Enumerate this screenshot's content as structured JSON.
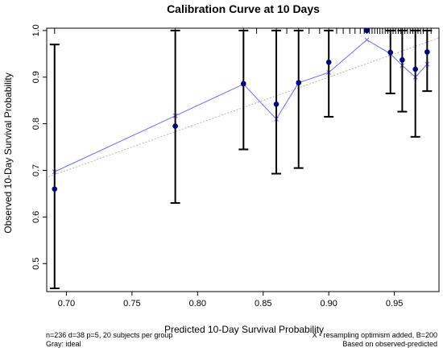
{
  "chart_data": {
    "type": "scatter",
    "title": "Calibration Curve at 10 Days",
    "xlabel": "Predicted 10-Day Survival Probability",
    "ylabel": "Observed 10-Day Survival Probability",
    "xlim": [
      0.685,
      0.984
    ],
    "ylim": [
      0.44,
      1.005
    ],
    "x_ticks": [
      0.7,
      0.75,
      0.8,
      0.85,
      0.9,
      0.95
    ],
    "x_tick_labels": [
      "0.70",
      "0.75",
      "0.80",
      "0.85",
      "0.90",
      "0.95"
    ],
    "y_ticks": [
      0.5,
      0.6,
      0.7,
      0.8,
      0.9,
      1.0
    ],
    "y_tick_labels": [
      "0.5",
      "0.6",
      "0.7",
      "0.8",
      "0.9",
      "1.0"
    ],
    "grid": false,
    "ideal_line": {
      "x": [
        0.67,
        0.984
      ],
      "y": [
        0.67,
        0.984
      ]
    },
    "series": [
      {
        "type": "line",
        "x": [
          0.691,
          0.783,
          0.835,
          0.86,
          0.877,
          0.9,
          0.929,
          0.947,
          0.956,
          0.966,
          0.975
        ],
        "y": [
          0.697,
          0.817,
          0.885,
          0.81,
          0.888,
          0.91,
          0.98,
          0.95,
          0.925,
          0.9,
          0.928
        ]
      },
      {
        "type": "scatter",
        "x": [
          0.691,
          0.783,
          0.835,
          0.86,
          0.877,
          0.9,
          0.929,
          0.947,
          0.956,
          0.966,
          0.975
        ],
        "y": [
          0.66,
          0.795,
          0.886,
          0.842,
          0.888,
          0.932,
          1.0,
          0.953,
          0.937,
          0.917,
          0.954
        ],
        "ci_low": [
          0.447,
          0.63,
          0.745,
          0.693,
          0.705,
          0.815,
          1.0,
          0.865,
          0.826,
          0.772,
          0.87
        ],
        "ci_high": [
          0.97,
          1.0,
          1.0,
          1.0,
          1.0,
          1.0,
          1.0,
          1.0,
          1.0,
          1.0,
          1.0
        ]
      }
    ],
    "rug_x": [
      0.691,
      0.783,
      0.835,
      0.845,
      0.86,
      0.868,
      0.877,
      0.885,
      0.893,
      0.9,
      0.906,
      0.911,
      0.916,
      0.92,
      0.924,
      0.927,
      0.929,
      0.931,
      0.933,
      0.935,
      0.937,
      0.939,
      0.941,
      0.943,
      0.945,
      0.947,
      0.949,
      0.951,
      0.953,
      0.955,
      0.956,
      0.958,
      0.96,
      0.962,
      0.964,
      0.966,
      0.968,
      0.97,
      0.972,
      0.975,
      0.978
    ],
    "colors": {
      "calibration": "#6b6bff",
      "points": "#000080",
      "ideal": "#b4b4b4",
      "error_bars": "#000000"
    },
    "notes": {
      "bottom_left_1": "n=236 d=38 p=5, 20 subjects per group",
      "bottom_left_2": "Gray: ideal",
      "bottom_right_1": "X - resampling optimism added, B=200",
      "bottom_right_2": "Based on observed-predicted"
    }
  }
}
